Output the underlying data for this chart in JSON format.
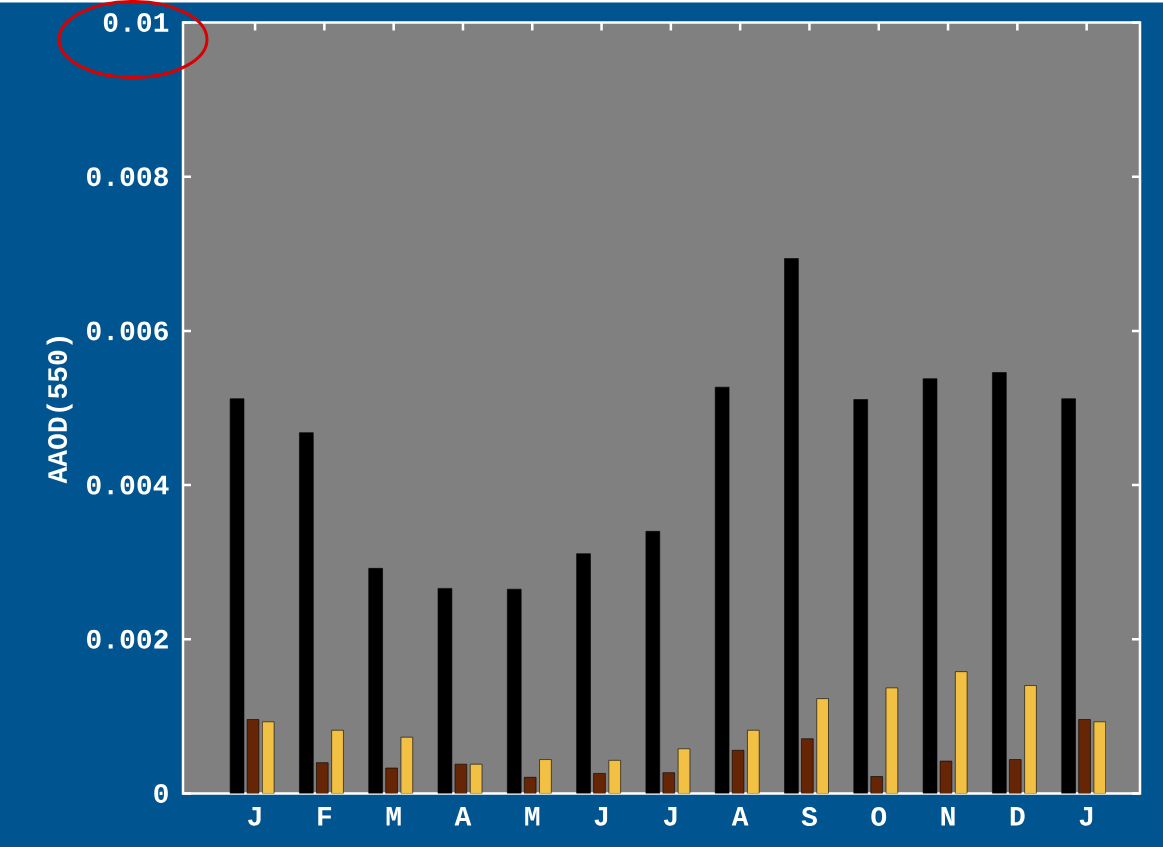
{
  "chart_data": {
    "type": "bar",
    "ylabel": "AAOD(550)",
    "categories": [
      "J",
      "F",
      "M",
      "A",
      "M",
      "J",
      "J",
      "A",
      "S",
      "O",
      "N",
      "D",
      "J"
    ],
    "series": [
      {
        "color": "#000000",
        "values": [
          0.00512,
          0.00468,
          0.00292,
          0.00266,
          0.00265,
          0.00311,
          0.0034,
          0.00527,
          0.00694,
          0.00511,
          0.00538,
          0.00546,
          0.00512
        ]
      },
      {
        "color": "#662505",
        "values": [
          0.00096,
          0.0004,
          0.00033,
          0.00038,
          0.00021,
          0.00026,
          0.00027,
          0.00056,
          0.00071,
          0.00022,
          0.00042,
          0.00044,
          0.00096
        ]
      },
      {
        "color": "#f2c043",
        "values": [
          0.00093,
          0.00082,
          0.00073,
          0.00038,
          0.00044,
          0.00043,
          0.00058,
          0.00082,
          0.00123,
          0.00137,
          0.00158,
          0.0014,
          0.00093
        ]
      }
    ],
    "ylim": [
      0,
      0.01
    ],
    "yticks": [
      0,
      0.002,
      0.004,
      0.006,
      0.008,
      0.01
    ],
    "grid": false
  }
}
